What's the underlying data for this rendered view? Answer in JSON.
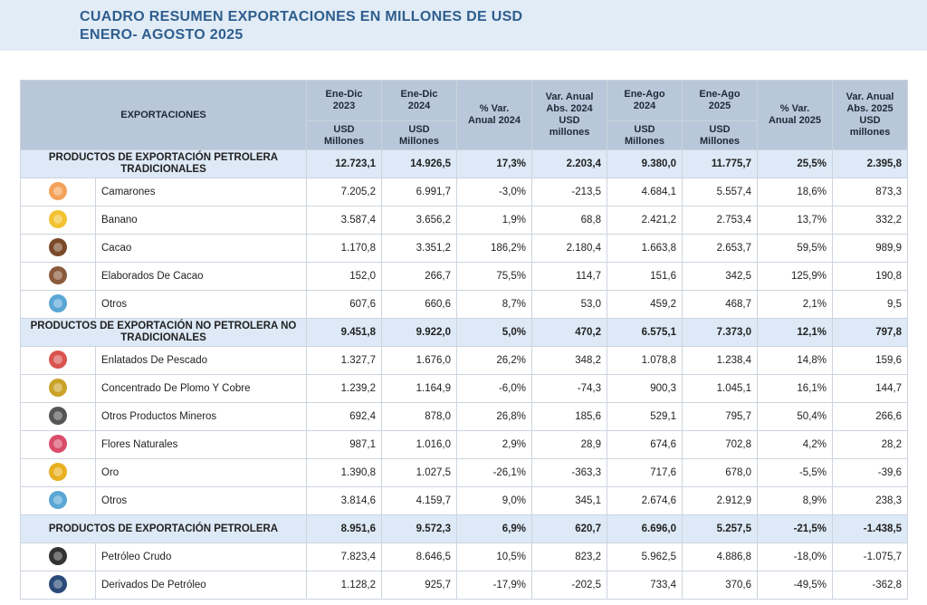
{
  "header": {
    "title": [
      "CUADRO RESUMEN EXPORTACIONES EN MILLONES DE USD",
      "ENERO- AGOSTO 2025"
    ]
  },
  "table": {
    "first_column": "EXPORTACIONES",
    "columns": [
      {
        "label": "Ene-Dic\n2023",
        "unit": "USD\nMillones"
      },
      {
        "label": "Ene-Dic\n2024",
        "unit": "USD\nMillones"
      },
      {
        "label": "% Var.\nAnual 2024"
      },
      {
        "label": "Var. Anual\nAbs. 2024\nUSD\nmillones"
      },
      {
        "label": "Ene-Ago\n2024",
        "unit": "USD\nMillones"
      },
      {
        "label": "Ene-Ago\n2025",
        "unit": "USD\nMillones"
      },
      {
        "label": "% Var.\nAnual 2025"
      },
      {
        "label": "Var. Anual\nAbs. 2025\nUSD\nmillones"
      }
    ],
    "sections": [
      {
        "label": "PRODUCTOS DE EXPORTACIÓN PETROLERA TRADICIONALES",
        "values": [
          "12.723,1",
          "14.926,5",
          "17,3%",
          "2.203,4",
          "9.380,0",
          "11.775,7",
          "25,5%",
          "2.395,8"
        ],
        "rows": [
          {
            "name": "Camarones",
            "values": [
              "7.205,2",
              "6.991,7",
              "-3,0%",
              "-213,5",
              "4.684,1",
              "5.557,4",
              "18,6%",
              "873,3"
            ]
          },
          {
            "name": "Banano",
            "values": [
              "3.587,4",
              "3.656,2",
              "1,9%",
              "68,8",
              "2.421,2",
              "2.753,4",
              "13,7%",
              "332,2"
            ]
          },
          {
            "name": "Cacao",
            "values": [
              "1.170,8",
              "3.351,2",
              "186,2%",
              "2.180,4",
              "1.663,8",
              "2.653,7",
              "59,5%",
              "989,9"
            ]
          },
          {
            "name": "Elaborados De Cacao",
            "values": [
              "152,0",
              "266,7",
              "75,5%",
              "114,7",
              "151,6",
              "342,5",
              "125,9%",
              "190,8"
            ]
          },
          {
            "name": "Otros",
            "values": [
              "607,6",
              "660,6",
              "8,7%",
              "53,0",
              "459,2",
              "468,7",
              "2,1%",
              "9,5"
            ]
          }
        ]
      },
      {
        "label": "PRODUCTOS DE EXPORTACIÓN NO PETROLERA NO TRADICIONALES",
        "values": [
          "9.451,8",
          "9.922,0",
          "5,0%",
          "470,2",
          "6.575,1",
          "7.373,0",
          "12,1%",
          "797,8"
        ],
        "rows": [
          {
            "name": "Enlatados De Pescado",
            "values": [
              "1.327,7",
              "1.676,0",
              "26,2%",
              "348,2",
              "1.078,8",
              "1.238,4",
              "14,8%",
              "159,6"
            ]
          },
          {
            "name": "Concentrado De Plomo Y Cobre",
            "values": [
              "1.239,2",
              "1.164,9",
              "-6,0%",
              "-74,3",
              "900,3",
              "1.045,1",
              "16,1%",
              "144,7"
            ]
          },
          {
            "name": "Otros Productos Mineros",
            "values": [
              "692,4",
              "878,0",
              "26,8%",
              "185,6",
              "529,1",
              "795,7",
              "50,4%",
              "266,6"
            ]
          },
          {
            "name": "Flores Naturales",
            "values": [
              "987,1",
              "1.016,0",
              "2,9%",
              "28,9",
              "674,6",
              "702,8",
              "4,2%",
              "28,2"
            ]
          },
          {
            "name": "Oro",
            "values": [
              "1.390,8",
              "1.027,5",
              "-26,1%",
              "-363,3",
              "717,6",
              "678,0",
              "-5,5%",
              "-39,6"
            ]
          },
          {
            "name": "Otros",
            "values": [
              "3.814,6",
              "4.159,7",
              "9,0%",
              "345,1",
              "2.674,6",
              "2.912,9",
              "8,9%",
              "238,3"
            ]
          }
        ]
      },
      {
        "label": "PRODUCTOS DE EXPORTACIÓN PETROLERA",
        "values": [
          "8.951,6",
          "9.572,3",
          "6,9%",
          "620,7",
          "6.696,0",
          "5.257,5",
          "-21,5%",
          "-1.438,5"
        ],
        "rows": [
          {
            "name": "Petróleo Crudo",
            "values": [
              "7.823,4",
              "8.646,5",
              "10,5%",
              "823,2",
              "5.962,5",
              "4.886,8",
              "-18,0%",
              "-1.075,7"
            ]
          },
          {
            "name": "Derivados De Petróleo",
            "values": [
              "1.128,2",
              "925,7",
              "-17,9%",
              "-202,5",
              "733,4",
              "370,6",
              "-49,5%",
              "-362,8"
            ]
          }
        ]
      }
    ]
  }
}
